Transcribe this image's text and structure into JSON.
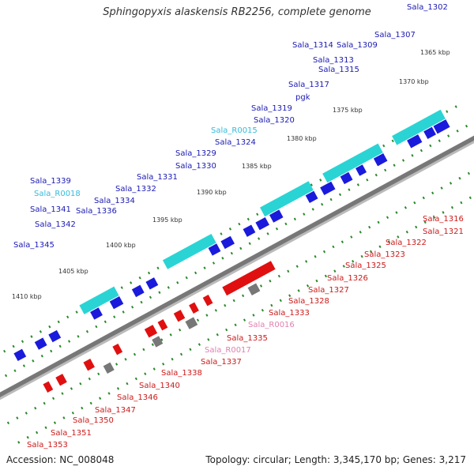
{
  "title": "Sphingopyxis alaskensis RB2256, complete genome",
  "footer": {
    "accession": "Accession: NC_008048",
    "summary": "Topology: circular; Length: 3,345,170 bp; Genes: 3,217"
  },
  "colors": {
    "forward_gene": "#1a1adc",
    "reverse_gene": "#e01010",
    "forward_rna": "#33bbdd",
    "reverse_rna": "#e080b0",
    "forward_label": "#1a1ab4",
    "reverse_label": "#cc1a1a",
    "cog_cyan": "#2ad4d4",
    "backbone": "#888888",
    "tick": "#2a8a2a"
  },
  "scale": {
    "start_kbp": 1365,
    "step_kbp": 5,
    "tick_labels": [
      "1365 kbp",
      "1370 kbp",
      "1375 kbp",
      "1380 kbp",
      "1385 kbp",
      "1390 kbp",
      "1395 kbp",
      "1400 kbp",
      "1405 kbp",
      "1410 kbp"
    ]
  },
  "forward_labels": [
    "Sala_1302",
    "Sala_1307",
    "Sala_1309",
    "Sala_1314",
    "Sala_1313",
    "Sala_1315",
    "Sala_1317",
    "pgk",
    "Sala_1319",
    "Sala_1320",
    "Sala_R0015",
    "Sala_1324",
    "Sala_1329",
    "Sala_1330",
    "Sala_1331",
    "Sala_1332",
    "Sala_1334",
    "Sala_1339",
    "Sala_R0018",
    "Sala_1336",
    "Sala_1341",
    "Sala_1342",
    "Sala_1345"
  ],
  "reverse_labels": [
    "Sala_1316",
    "Sala_1321",
    "Sala_1322",
    "Sala_1323",
    "Sala_1325",
    "Sala_1326",
    "Sala_1327",
    "Sala_1328",
    "Sala_1333",
    "Sala_R0016",
    "Sala_1335",
    "Sala_R0017",
    "Sala_1337",
    "Sala_1338",
    "Sala_1340",
    "Sala_1346",
    "Sala_1347",
    "Sala_1350",
    "Sala_1351",
    "Sala_1353"
  ],
  "rna_labels": [
    "Sala_R0015",
    "Sala_R0018",
    "Sala_R0016",
    "Sala_R0017"
  ]
}
